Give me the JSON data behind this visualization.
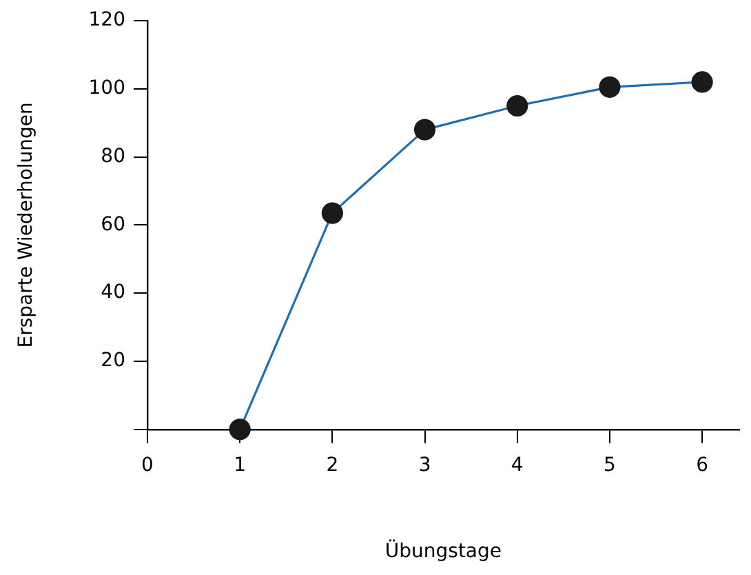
{
  "chart_data": {
    "type": "line",
    "xlabel": "Übungstage",
    "ylabel": "Ersparte Wiederholungen",
    "x": [
      1,
      2,
      3,
      4,
      5,
      6
    ],
    "series": [
      {
        "color": "#1f6fb0",
        "values": [
          0,
          63.5,
          88,
          95,
          100.5,
          102
        ]
      }
    ],
    "xlim": [
      0,
      6.4
    ],
    "xticks": [
      {
        "value": 0,
        "label": "0"
      },
      1,
      2,
      3,
      4,
      5,
      6
    ],
    "ylim": [
      0,
      120
    ],
    "yticks": [
      {
        "value": 0,
        "label": null
      },
      20,
      40,
      60,
      80,
      100,
      120
    ],
    "grid": false,
    "legend": false,
    "marker": "circle",
    "line_style": "solid"
  }
}
